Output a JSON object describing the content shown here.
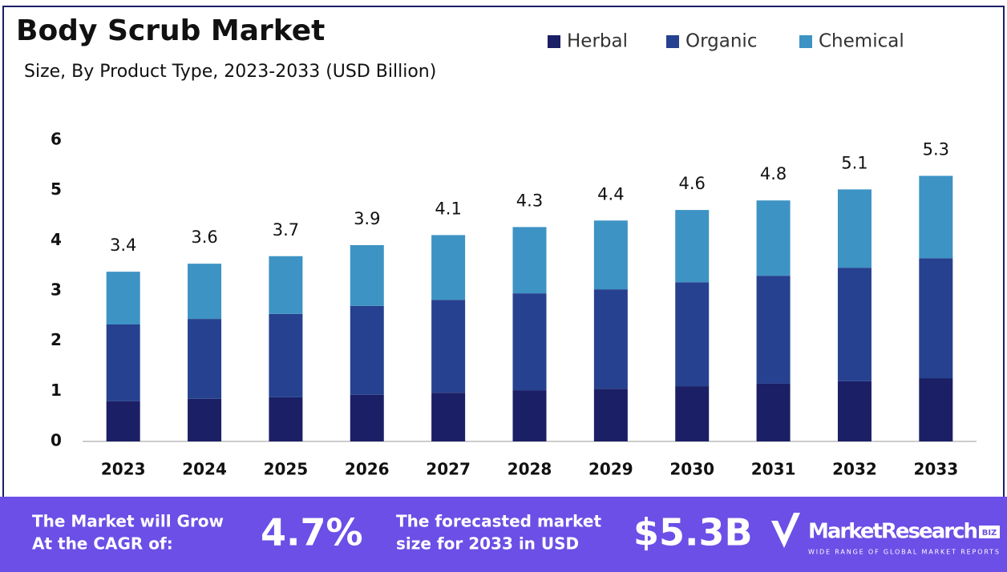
{
  "chart_data": {
    "type": "stacked_bar",
    "title": "Body Scrub Market",
    "subtitle": "Size, By Product Type, 2023-2033 (USD Billion)",
    "categories": [
      "2023",
      "2024",
      "2025",
      "2026",
      "2027",
      "2028",
      "2029",
      "2030",
      "2031",
      "2032",
      "2033"
    ],
    "series": [
      {
        "name": "Herbal",
        "color": "#1b1f66",
        "values": [
          0.8,
          0.85,
          0.88,
          0.93,
          0.97,
          1.02,
          1.05,
          1.1,
          1.15,
          1.2,
          1.26
        ]
      },
      {
        "name": "Organic",
        "color": "#26418f",
        "values": [
          1.53,
          1.59,
          1.66,
          1.77,
          1.85,
          1.93,
          1.98,
          2.07,
          2.15,
          2.26,
          2.39
        ]
      },
      {
        "name": "Chemical",
        "color": "#3d93c4",
        "values": [
          1.05,
          1.1,
          1.15,
          1.21,
          1.29,
          1.32,
          1.37,
          1.44,
          1.5,
          1.56,
          1.64
        ]
      }
    ],
    "totals": [
      3.4,
      3.6,
      3.7,
      3.9,
      4.1,
      4.3,
      4.4,
      4.6,
      4.8,
      5.1,
      5.3
    ],
    "ylim": [
      0,
      6
    ],
    "yticks": [
      0,
      1,
      2,
      3,
      4,
      5,
      6
    ],
    "legend": "top-right"
  },
  "footer": {
    "cagr_text": [
      "The Market will Grow",
      "At the CAGR of:"
    ],
    "cagr_value": "4.7%",
    "forecast_text": [
      "The forecasted market",
      "size for 2033 in USD"
    ],
    "forecast_value": "$5.3B",
    "logo": {
      "name": "MarketResearch",
      "badge": "BIZ",
      "tagline": "WIDE RANGE OF GLOBAL MARKET REPORTS"
    }
  }
}
